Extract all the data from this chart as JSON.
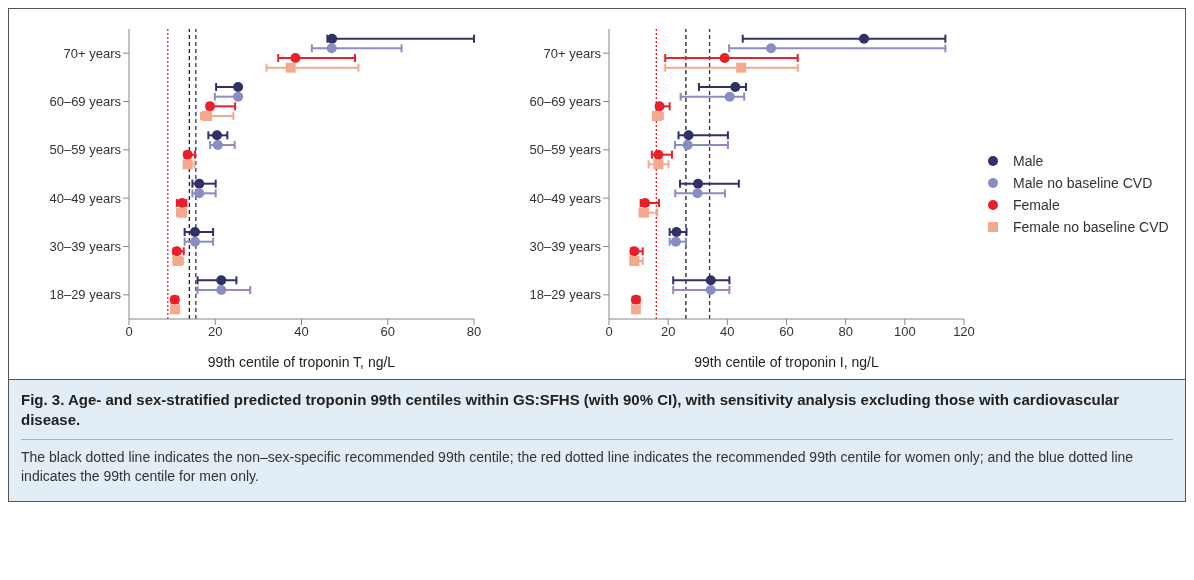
{
  "chart_data": [
    {
      "type": "scatter",
      "xlabel": "99th centile of troponin T, ng/L",
      "categories": [
        "70+ years",
        "60–69 years",
        "50–59 years",
        "40–49 years",
        "30–39 years",
        "18–29 years"
      ],
      "orientation": "horizontal",
      "xlim": [
        0,
        80
      ],
      "xticks": [
        0,
        20,
        40,
        60,
        80
      ],
      "grid": false,
      "title": "Fig. 3.  Age- and sex-stratified predicted troponin 99th centiles within GS:SFHS (with 90% CI), with sensitivity analysis excluding those with cardiovascular disease.",
      "annotations": [
        "The black dotted line indicates the non–sex-specific recommended 99th centile; the red dotted line indicates the recommended 99th centile for women only; and the blue dotted line indicates the 99th centile for men only."
      ],
      "ref_lines": [
        {
          "axis": "x",
          "value": 9,
          "color": "#e8202a",
          "line_style": "dotted"
        },
        {
          "axis": "x",
          "value": 14,
          "color": "#222222",
          "line_style": "dashed"
        },
        {
          "axis": "x",
          "value": 15.5,
          "color": "#2e3266",
          "line_style": "dashed"
        }
      ],
      "series": [
        {
          "color": "#2e3266",
          "marker": "circle",
          "values": [
            47.1,
            25.3,
            20.4,
            16.3,
            15.3,
            21.4
          ],
          "errors": [
            [
              46,
              80
            ],
            [
              20.2,
              25.5
            ],
            [
              18.4,
              22.8
            ],
            [
              14.7,
              20.1
            ],
            [
              12.9,
              19.5
            ],
            [
              15.9,
              24.9
            ]
          ]
        },
        {
          "color": "#8a8cc4",
          "marker": "circle",
          "values": [
            47,
            25.3,
            20.6,
            16.3,
            15.3,
            21.4
          ],
          "errors": [
            [
              42.4,
              63.2
            ],
            [
              19.9,
              25.5
            ],
            [
              18.8,
              24.5
            ],
            [
              14.7,
              20.1
            ],
            [
              12.9,
              19.5
            ],
            [
              15.9,
              28.1
            ]
          ]
        },
        {
          "color": "#e8202a",
          "marker": "circle",
          "values": [
            38.6,
            18.8,
            13.6,
            12.3,
            11.1,
            10.6
          ],
          "errors": [
            [
              34.6,
              52.4
            ],
            [
              18.1,
              24.6
            ],
            [
              12.9,
              15.3
            ],
            [
              11.1,
              13.3
            ],
            [
              10.3,
              12.7
            ],
            [
              9.9,
              11.4
            ]
          ]
        },
        {
          "color": "#f2a98e",
          "marker": "square",
          "values": [
            37.5,
            18.1,
            13.6,
            12.2,
            11.3,
            10.7
          ],
          "errors": [
            [
              31.9,
              53.2
            ],
            [
              16.7,
              24.2
            ],
            [
              12.8,
              15.2
            ],
            [
              11.1,
              13.3
            ],
            [
              10.3,
              12.5
            ],
            [
              9.9,
              11.5
            ]
          ]
        }
      ]
    },
    {
      "type": "scatter",
      "xlabel": "99th centile of troponin  I, ng/L",
      "categories": [
        "70+ years",
        "60–69 years",
        "50–59 years",
        "40–49 years",
        "30–39 years",
        "18–29 years"
      ],
      "orientation": "horizontal",
      "xlim": [
        0,
        120
      ],
      "xticks": [
        0,
        20,
        40,
        60,
        80,
        100,
        120
      ],
      "legend": "right",
      "grid": false,
      "ref_lines": [
        {
          "axis": "x",
          "value": 16,
          "color": "#e8202a",
          "line_style": "dotted"
        },
        {
          "axis": "x",
          "value": 26,
          "color": "#222222",
          "line_style": "dashed"
        },
        {
          "axis": "x",
          "value": 34,
          "color": "#2e3266",
          "line_style": "dashed"
        }
      ],
      "series": [
        {
          "name": "Male",
          "color": "#2e3266",
          "marker": "circle",
          "values": [
            86.2,
            42.7,
            26.9,
            30.1,
            22.8,
            34.4
          ],
          "errors": [
            [
              45.2,
              113.7
            ],
            [
              30.4,
              46.3
            ],
            [
              23.5,
              40.2
            ],
            [
              24,
              43.9
            ],
            [
              20.5,
              26.2
            ],
            [
              21.7,
              40.7
            ]
          ]
        },
        {
          "name": "Male no baseline CVD",
          "color": "#8a8cc4",
          "marker": "circle",
          "values": [
            54.8,
            40.8,
            26.6,
            29.9,
            22.6,
            34.4
          ],
          "errors": [
            [
              40.6,
              113.7
            ],
            [
              24.2,
              45.7
            ],
            [
              22.3,
              40.2
            ],
            [
              22.4,
              39.2
            ],
            [
              20.5,
              26
            ],
            [
              21.7,
              40.7
            ]
          ]
        },
        {
          "name": "Female",
          "color": "#e8202a",
          "marker": "circle",
          "values": [
            39.1,
            17.1,
            16.7,
            12.2,
            8.6,
            9.1
          ],
          "errors": [
            [
              19,
              63.8
            ],
            [
              16.1,
              20.5
            ],
            [
              14.5,
              21.3
            ],
            [
              10.7,
              16.9
            ],
            [
              7.4,
              11.4
            ],
            [
              8,
              10.3
            ]
          ]
        },
        {
          "name": "Female no baseline CVD",
          "color": "#f2a98e",
          "marker": "square",
          "values": [
            44.7,
            16.2,
            16.7,
            11.8,
            8.6,
            9.1
          ],
          "errors": [
            [
              19,
              63.8
            ],
            [
              14.9,
              18.2
            ],
            [
              13.4,
              20.1
            ],
            [
              10.3,
              16.3
            ],
            [
              7.2,
              11.4
            ],
            [
              8,
              10.3
            ]
          ]
        }
      ]
    }
  ]
}
